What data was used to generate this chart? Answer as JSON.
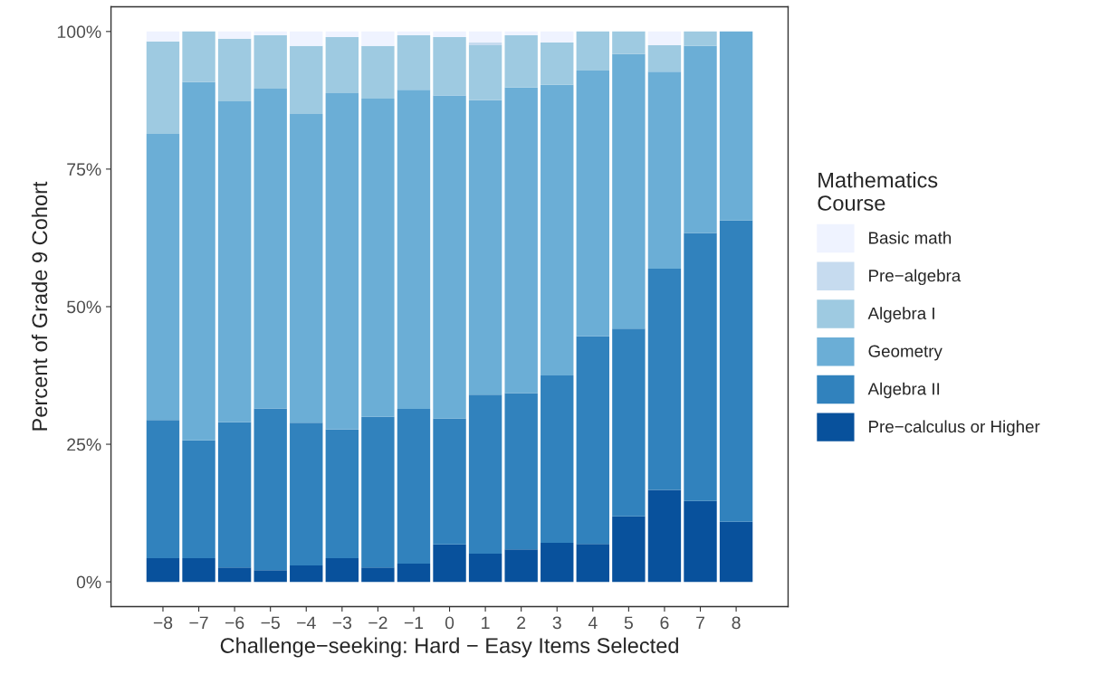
{
  "chart_data": {
    "type": "bar",
    "stacked": true,
    "xlabel": "Challenge−seeking: Hard − Easy Items Selected",
    "ylabel": "Percent of Grade 9 Cohort",
    "legend_title": "Mathematics\nCourse",
    "legend": "right",
    "grid": false,
    "categories": [
      "−8",
      "−7",
      "−6",
      "−5",
      "−4",
      "−3",
      "−2",
      "−1",
      "0",
      "1",
      "2",
      "3",
      "4",
      "5",
      "6",
      "7",
      "8"
    ],
    "ylim": [
      -4.5,
      104.5
    ],
    "yticks": [
      {
        "value": 0,
        "label": "0%"
      },
      {
        "value": 25,
        "label": "25%"
      },
      {
        "value": 50,
        "label": "50%"
      },
      {
        "value": 75,
        "label": "75%"
      },
      {
        "value": 100,
        "label": "100%"
      }
    ],
    "series": [
      {
        "name": "Pre−calculus or Higher",
        "color": "#08519c",
        "values": [
          4.3,
          4.3,
          2.6,
          2.1,
          3.0,
          4.3,
          2.6,
          3.3,
          6.8,
          5.1,
          5.9,
          7.1,
          6.9,
          11.9,
          16.7,
          14.7,
          10.9
        ]
      },
      {
        "name": "Algebra II",
        "color": "#3182bd",
        "values": [
          25.1,
          21.4,
          26.4,
          29.4,
          25.9,
          23.4,
          27.4,
          28.1,
          22.9,
          28.9,
          28.4,
          30.4,
          37.7,
          34.1,
          40.2,
          48.7,
          54.8
        ]
      },
      {
        "name": "Geometry",
        "color": "#6baed6",
        "values": [
          52.0,
          65.1,
          58.3,
          58.1,
          56.1,
          61.1,
          57.8,
          58.0,
          58.7,
          53.5,
          55.5,
          52.8,
          48.3,
          49.9,
          35.8,
          34.0,
          34.3
        ]
      },
      {
        "name": "Algebra I",
        "color": "#9ecae1",
        "values": [
          16.8,
          9.2,
          11.4,
          9.7,
          12.4,
          10.2,
          9.6,
          9.9,
          10.6,
          10.0,
          9.5,
          7.7,
          7.1,
          4.1,
          4.8,
          2.6,
          0
        ]
      },
      {
        "name": "Pre−algebra",
        "color": "#c6dbef",
        "values": [
          0,
          0,
          0,
          0,
          0,
          0,
          0,
          0,
          0,
          0.5,
          0,
          0,
          0,
          0,
          0,
          0,
          0
        ]
      },
      {
        "name": "Basic math",
        "color": "#eff3ff",
        "values": [
          1.8,
          0,
          1.3,
          0.7,
          2.6,
          1.0,
          2.6,
          0.7,
          1.0,
          2.0,
          0.7,
          2.0,
          0,
          0,
          2.5,
          0,
          0
        ]
      }
    ]
  }
}
